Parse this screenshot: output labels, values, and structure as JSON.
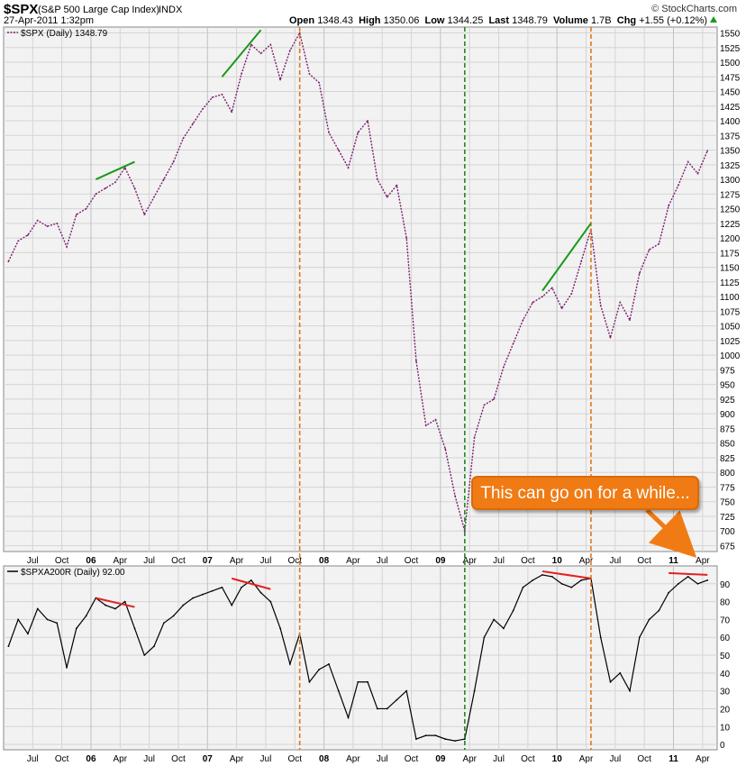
{
  "header": {
    "symbol": "$SPX",
    "name": "(S&P 500 Large Cap Index)",
    "exchange": "INDX",
    "datetime": "27-Apr-2011 1:32pm",
    "open_label": "Open",
    "open": "1348.43",
    "high_label": "High",
    "high": "1350.06",
    "low_label": "Low",
    "low": "1344.25",
    "last_label": "Last",
    "last": "1348.79",
    "volume_label": "Volume",
    "volume": "1.7B",
    "chg_label": "Chg",
    "chg": "+1.55 (+0.12%)",
    "credit": "© StockCharts.com"
  },
  "annotation": {
    "text": "This can go on for a while..."
  },
  "colors": {
    "price": "#7a1f6e",
    "breadth": "#000000",
    "green_line": "#1a9a1a",
    "red_line": "#e32020",
    "orange_vline": "#e0761a",
    "green_vline": "#1f8a1f",
    "callout": "#f07b14",
    "plot_bg": "#f2f2f2"
  },
  "chart_data": [
    {
      "type": "line",
      "legend": "$SPX (Daily) 1348.79",
      "ylim": [
        665,
        1560
      ],
      "yticks": [
        1550,
        1525,
        1500,
        1475,
        1450,
        1425,
        1400,
        1375,
        1350,
        1325,
        1300,
        1275,
        1250,
        1225,
        1200,
        1175,
        1150,
        1125,
        1100,
        1075,
        1050,
        1025,
        1000,
        975,
        950,
        925,
        900,
        875,
        850,
        825,
        800,
        775,
        750,
        725,
        700,
        675
      ],
      "xticks": [
        "Jul",
        "Oct",
        "06",
        "Apr",
        "Jul",
        "Oct",
        "07",
        "Apr",
        "Jul",
        "Oct",
        "08",
        "Apr",
        "Jul",
        "Oct",
        "09",
        "Apr",
        "Jul",
        "Oct",
        "10",
        "Apr",
        "Jul",
        "Oct",
        "11",
        "Apr"
      ],
      "x": [
        "2005-04",
        "2005-05",
        "2005-06",
        "2005-07",
        "2005-08",
        "2005-09",
        "2005-10",
        "2005-11",
        "2005-12",
        "2006-01",
        "2006-02",
        "2006-03",
        "2006-04",
        "2006-05",
        "2006-06",
        "2006-07",
        "2006-08",
        "2006-09",
        "2006-10",
        "2006-11",
        "2006-12",
        "2007-01",
        "2007-02",
        "2007-03",
        "2007-04",
        "2007-05",
        "2007-06",
        "2007-07",
        "2007-08",
        "2007-09",
        "2007-10",
        "2007-11",
        "2007-12",
        "2008-01",
        "2008-02",
        "2008-03",
        "2008-04",
        "2008-05",
        "2008-06",
        "2008-07",
        "2008-08",
        "2008-09",
        "2008-10",
        "2008-11",
        "2008-12",
        "2009-01",
        "2009-02",
        "2009-03",
        "2009-04",
        "2009-05",
        "2009-06",
        "2009-07",
        "2009-08",
        "2009-09",
        "2009-10",
        "2009-11",
        "2009-12",
        "2010-01",
        "2010-02",
        "2010-03",
        "2010-04",
        "2010-05",
        "2010-06",
        "2010-07",
        "2010-08",
        "2010-09",
        "2010-10",
        "2010-11",
        "2010-12",
        "2011-01",
        "2011-02",
        "2011-03",
        "2011-04"
      ],
      "values": [
        1160,
        1195,
        1205,
        1230,
        1220,
        1225,
        1185,
        1240,
        1250,
        1275,
        1285,
        1295,
        1320,
        1285,
        1240,
        1270,
        1300,
        1330,
        1370,
        1395,
        1420,
        1440,
        1445,
        1415,
        1480,
        1530,
        1515,
        1530,
        1470,
        1520,
        1550,
        1480,
        1465,
        1380,
        1350,
        1320,
        1380,
        1400,
        1300,
        1270,
        1290,
        1200,
        990,
        880,
        890,
        840,
        760,
        700,
        860,
        915,
        925,
        980,
        1020,
        1060,
        1090,
        1100,
        1115,
        1080,
        1105,
        1160,
        1215,
        1085,
        1030,
        1090,
        1060,
        1140,
        1180,
        1190,
        1255,
        1290,
        1330,
        1310,
        1348.79
      ]
    },
    {
      "type": "line",
      "legend": "$SPXA200R (Daily) 92.00",
      "ylim": [
        -3,
        100
      ],
      "yticks": [
        90,
        80,
        70,
        60,
        50,
        40,
        30,
        20,
        10,
        0
      ],
      "xticks": [
        "Jul",
        "Oct",
        "06",
        "Apr",
        "Jul",
        "Oct",
        "07",
        "Apr",
        "Jul",
        "Oct",
        "08",
        "Apr",
        "Jul",
        "Oct",
        "09",
        "Apr",
        "Jul",
        "Oct",
        "10",
        "Apr",
        "Jul",
        "Oct",
        "11",
        "Apr"
      ],
      "x": [
        "2005-04",
        "2005-05",
        "2005-06",
        "2005-07",
        "2005-08",
        "2005-09",
        "2005-10",
        "2005-11",
        "2005-12",
        "2006-01",
        "2006-02",
        "2006-03",
        "2006-04",
        "2006-05",
        "2006-06",
        "2006-07",
        "2006-08",
        "2006-09",
        "2006-10",
        "2006-11",
        "2006-12",
        "2007-01",
        "2007-02",
        "2007-03",
        "2007-04",
        "2007-05",
        "2007-06",
        "2007-07",
        "2007-08",
        "2007-09",
        "2007-10",
        "2007-11",
        "2007-12",
        "2008-01",
        "2008-02",
        "2008-03",
        "2008-04",
        "2008-05",
        "2008-06",
        "2008-07",
        "2008-08",
        "2008-09",
        "2008-10",
        "2008-11",
        "2008-12",
        "2009-01",
        "2009-02",
        "2009-03",
        "2009-04",
        "2009-05",
        "2009-06",
        "2009-07",
        "2009-08",
        "2009-09",
        "2009-10",
        "2009-11",
        "2009-12",
        "2010-01",
        "2010-02",
        "2010-03",
        "2010-04",
        "2010-05",
        "2010-06",
        "2010-07",
        "2010-08",
        "2010-09",
        "2010-10",
        "2010-11",
        "2010-12",
        "2011-01",
        "2011-02",
        "2011-03",
        "2011-04"
      ],
      "values": [
        55,
        70,
        62,
        76,
        70,
        68,
        43,
        65,
        72,
        82,
        78,
        76,
        80,
        65,
        50,
        55,
        68,
        72,
        78,
        82,
        84,
        86,
        88,
        78,
        88,
        92,
        85,
        80,
        65,
        45,
        62,
        35,
        42,
        45,
        30,
        15,
        35,
        35,
        20,
        20,
        25,
        30,
        3,
        5,
        5,
        3,
        2,
        3,
        30,
        60,
        70,
        65,
        75,
        88,
        92,
        95,
        94,
        90,
        88,
        92,
        93,
        60,
        35,
        40,
        30,
        60,
        70,
        75,
        85,
        90,
        94,
        90,
        92
      ]
    }
  ],
  "annotations": {
    "green_lines": [
      [
        "2006-01",
        1300,
        "2006-05",
        1330
      ],
      [
        "2007-02",
        1475,
        "2007-06",
        1555
      ],
      [
        "2009-11",
        1110,
        "2010-04",
        1225
      ]
    ],
    "red_lines": [
      [
        "2006-01",
        82,
        "2006-05",
        77
      ],
      [
        "2007-03",
        93,
        "2007-07",
        87
      ],
      [
        "2009-11",
        97,
        "2010-04",
        93
      ],
      [
        "2010-12",
        96,
        "2011-04",
        95
      ]
    ],
    "orange_vlines": [
      "2007-10",
      "2010-04"
    ],
    "green_vlines": [
      "2009-03"
    ],
    "callout_arrow": [
      "2011-01",
      85,
      "2011-04",
      100
    ]
  }
}
